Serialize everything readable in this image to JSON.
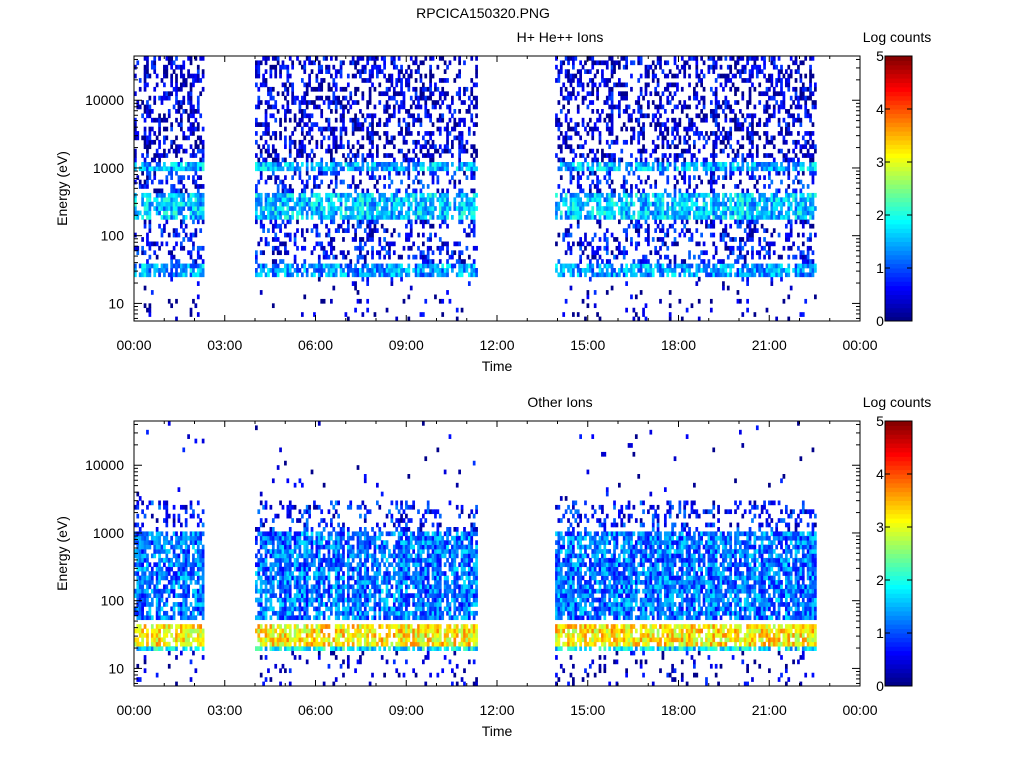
{
  "figure_title": "RPCICA150320.PNG",
  "chart_data": [
    {
      "type": "heatmap",
      "title": "H+ He++ Ions",
      "xlabel": "Time",
      "ylabel": "Energy (eV)",
      "x_ticks": [
        "00:00",
        "03:00",
        "06:00",
        "09:00",
        "12:00",
        "15:00",
        "18:00",
        "21:00",
        "00:00"
      ],
      "y_ticks": [
        "10",
        "100",
        "1000",
        "10000"
      ],
      "y_scale": "log",
      "ylim": [
        5.5,
        45000
      ],
      "xlim_hours": [
        0,
        24
      ],
      "colorbar": {
        "label": "Log counts",
        "ticks": [
          "0",
          "1",
          "2",
          "3",
          "4",
          "5"
        ],
        "range": [
          0,
          5
        ],
        "colormap": "jet"
      },
      "data_intervals_hours": [
        [
          0.0,
          2.35
        ],
        [
          4.0,
          11.35
        ],
        [
          13.95,
          22.55
        ]
      ],
      "features": [
        {
          "energy_band_eV": [
            25,
            40
          ],
          "level": 1.4
        },
        {
          "energy_band_eV": [
            180,
            450
          ],
          "level": 1.6
        },
        {
          "energy_band_eV": [
            900,
            1300
          ],
          "level": 1.5
        }
      ],
      "grid": false
    },
    {
      "type": "heatmap",
      "title": "Other Ions",
      "xlabel": "Time",
      "ylabel": "Energy (eV)",
      "x_ticks": [
        "00:00",
        "03:00",
        "06:00",
        "09:00",
        "12:00",
        "15:00",
        "18:00",
        "21:00",
        "00:00"
      ],
      "y_ticks": [
        "10",
        "100",
        "1000",
        "10000"
      ],
      "y_scale": "log",
      "ylim": [
        5.5,
        45000
      ],
      "xlim_hours": [
        0,
        24
      ],
      "colorbar": {
        "label": "Log counts",
        "ticks": [
          "0",
          "1",
          "2",
          "3",
          "4",
          "5"
        ],
        "range": [
          0,
          5
        ],
        "colormap": "jet"
      },
      "data_intervals_hours": [
        [
          0.0,
          2.35
        ],
        [
          4.0,
          11.35
        ],
        [
          13.95,
          22.55
        ]
      ],
      "features": [
        {
          "energy_band_eV": [
            22,
            42
          ],
          "level": 3.2
        },
        {
          "energy_band_eV": [
            17,
            22
          ],
          "level": 1.8
        },
        {
          "energy_band_eV": [
            50,
            1000
          ],
          "level": 1.2
        }
      ],
      "grid": false
    }
  ]
}
